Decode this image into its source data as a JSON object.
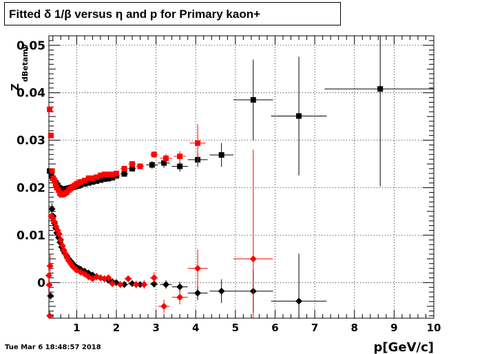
{
  "title": "Fitted δ 1/β versus η and p for Primary kaon+",
  "timestamp": "Tue Mar  6 18:48:57 2018",
  "chart_data": {
    "type": "scatter",
    "title": "Fitted δ 1/β versus η and p for Primary kaon+",
    "xlabel": "p[GeV/c]",
    "ylabel_main": "Z",
    "ylabel_sub": "dBetamv",
    "xlim": [
      0.3,
      10
    ],
    "ylim": [
      -0.0075,
      0.052
    ],
    "grid": true,
    "xticks": [
      "1",
      "2",
      "3",
      "4",
      "5",
      "6",
      "7",
      "8",
      "9",
      "10"
    ],
    "yticks": [
      "0",
      "0.01",
      "0.02",
      "0.03",
      "0.04",
      "0.05"
    ],
    "series": [
      {
        "color": "#000000",
        "marker": "square",
        "points": [
          [
            0.32,
            0.0235
          ],
          [
            0.36,
            0.0225
          ],
          [
            0.4,
            0.022
          ],
          [
            0.44,
            0.0215
          ],
          [
            0.48,
            0.021
          ],
          [
            0.52,
            0.0205
          ],
          [
            0.56,
            0.02
          ],
          [
            0.6,
            0.0198
          ],
          [
            0.65,
            0.0197
          ],
          [
            0.7,
            0.0197
          ],
          [
            0.75,
            0.0198
          ],
          [
            0.8,
            0.0199
          ],
          [
            0.85,
            0.02
          ],
          [
            0.9,
            0.0201
          ],
          [
            0.95,
            0.0202
          ],
          [
            1.0,
            0.0203
          ],
          [
            1.05,
            0.0204
          ],
          [
            1.1,
            0.0206
          ],
          [
            1.2,
            0.0208
          ],
          [
            1.3,
            0.021
          ],
          [
            1.4,
            0.0212
          ],
          [
            1.5,
            0.0214
          ],
          [
            1.6,
            0.0216
          ],
          [
            1.7,
            0.0218
          ],
          [
            1.8,
            0.0219
          ],
          [
            1.9,
            0.0221
          ],
          [
            2.0,
            0.0225
          ],
          [
            2.2,
            0.0229
          ],
          [
            2.4,
            0.024
          ],
          [
            2.6,
            0.0245
          ],
          [
            2.9,
            0.0248
          ],
          [
            3.2,
            0.0252
          ],
          [
            3.6,
            0.0245
          ],
          [
            4.05,
            0.0259
          ],
          [
            4.65,
            0.0269
          ],
          [
            5.45,
            0.0385
          ],
          [
            6.6,
            0.0351
          ],
          [
            8.65,
            0.0408
          ]
        ],
        "xerr": [
          0.02,
          0.02,
          0.02,
          0.02,
          0.02,
          0.02,
          0.02,
          0.02,
          0.025,
          0.025,
          0.025,
          0.025,
          0.025,
          0.025,
          0.025,
          0.025,
          0.025,
          0.05,
          0.05,
          0.05,
          0.05,
          0.05,
          0.05,
          0.05,
          0.05,
          0.05,
          0.1,
          0.1,
          0.1,
          0.1,
          0.15,
          0.15,
          0.2,
          0.25,
          0.3,
          0.5,
          0.7,
          1.4
        ],
        "yerr": [
          0.0004,
          0.0003,
          0.0003,
          0.0003,
          0.0002,
          0.0002,
          0.0002,
          0.0002,
          0.0002,
          0.0002,
          0.0002,
          0.0002,
          0.0002,
          0.0002,
          0.0002,
          0.0002,
          0.0002,
          0.0002,
          0.0002,
          0.0002,
          0.0002,
          0.0002,
          0.0002,
          0.0003,
          0.0003,
          0.0003,
          0.0004,
          0.0005,
          0.0005,
          0.0006,
          0.0008,
          0.001,
          0.0011,
          0.0015,
          0.0025,
          0.0085,
          0.0125,
          0.0205
        ]
      },
      {
        "color": "#ff0000",
        "marker": "square",
        "points": [
          [
            0.32,
            0.0365
          ],
          [
            0.35,
            0.031
          ],
          [
            0.38,
            0.0235
          ],
          [
            0.41,
            0.022
          ],
          [
            0.44,
            0.0215
          ],
          [
            0.47,
            0.0205
          ],
          [
            0.5,
            0.02
          ],
          [
            0.54,
            0.0195
          ],
          [
            0.58,
            0.0188
          ],
          [
            0.62,
            0.0185
          ],
          [
            0.66,
            0.0186
          ],
          [
            0.7,
            0.0188
          ],
          [
            0.75,
            0.019
          ],
          [
            0.8,
            0.0195
          ],
          [
            0.85,
            0.0198
          ],
          [
            0.9,
            0.0202
          ],
          [
            0.95,
            0.0205
          ],
          [
            1.0,
            0.0208
          ],
          [
            1.05,
            0.021
          ],
          [
            1.1,
            0.0212
          ],
          [
            1.2,
            0.0215
          ],
          [
            1.3,
            0.022
          ],
          [
            1.4,
            0.022
          ],
          [
            1.5,
            0.0222
          ],
          [
            1.6,
            0.0226
          ],
          [
            1.7,
            0.0228
          ],
          [
            1.8,
            0.0228
          ],
          [
            1.9,
            0.0228
          ],
          [
            2.0,
            0.023
          ],
          [
            2.2,
            0.024
          ],
          [
            2.4,
            0.025
          ],
          [
            2.6,
            0.0245
          ],
          [
            2.95,
            0.027
          ],
          [
            3.25,
            0.0262
          ],
          [
            3.6,
            0.0266
          ],
          [
            4.05,
            0.0294
          ]
        ],
        "xerr": [
          0.015,
          0.015,
          0.015,
          0.015,
          0.015,
          0.015,
          0.02,
          0.02,
          0.02,
          0.02,
          0.02,
          0.02,
          0.025,
          0.025,
          0.025,
          0.025,
          0.025,
          0.025,
          0.025,
          0.05,
          0.05,
          0.05,
          0.05,
          0.05,
          0.05,
          0.05,
          0.05,
          0.05,
          0.05,
          0.1,
          0.1,
          0.1,
          0.1,
          0.15,
          0.15,
          0.2
        ],
        "yerr": [
          0.0005,
          0.0005,
          0.0004,
          0.0003,
          0.0003,
          0.0003,
          0.0002,
          0.0002,
          0.0002,
          0.0002,
          0.0002,
          0.0002,
          0.0002,
          0.0002,
          0.0002,
          0.0002,
          0.0002,
          0.0002,
          0.0002,
          0.0002,
          0.0002,
          0.0002,
          0.0002,
          0.0003,
          0.0003,
          0.0003,
          0.0003,
          0.0003,
          0.0004,
          0.0005,
          0.0006,
          0.0006,
          0.0007,
          0.0009,
          0.0011,
          0.004
        ]
      },
      {
        "color": "#000000",
        "marker": "diamond",
        "points": [
          [
            0.34,
            -0.0028
          ],
          [
            0.38,
            0.0155
          ],
          [
            0.41,
            0.014
          ],
          [
            0.44,
            0.0125
          ],
          [
            0.47,
            0.0115
          ],
          [
            0.5,
            0.0105
          ],
          [
            0.54,
            0.0095
          ],
          [
            0.58,
            0.0085
          ],
          [
            0.62,
            0.0075
          ],
          [
            0.66,
            0.0068
          ],
          [
            0.7,
            0.0062
          ],
          [
            0.75,
            0.0056
          ],
          [
            0.8,
            0.005
          ],
          [
            0.85,
            0.0045
          ],
          [
            0.9,
            0.004
          ],
          [
            0.95,
            0.0036
          ],
          [
            1.0,
            0.0032
          ],
          [
            1.05,
            0.003
          ],
          [
            1.1,
            0.0028
          ],
          [
            1.2,
            0.0024
          ],
          [
            1.3,
            0.002
          ],
          [
            1.4,
            0.0016
          ],
          [
            1.5,
            0.0013
          ],
          [
            1.6,
            0.001
          ],
          [
            1.7,
            0.0008
          ],
          [
            1.8,
            0.0005
          ],
          [
            1.9,
            0.0002
          ],
          [
            2.0,
            0.0
          ],
          [
            2.2,
            -0.0004
          ],
          [
            2.4,
            -0.0002
          ],
          [
            2.6,
            -0.0004
          ],
          [
            2.95,
            -0.0003
          ],
          [
            3.25,
            -0.0004
          ],
          [
            3.6,
            -0.0009
          ],
          [
            4.05,
            -0.0022
          ],
          [
            4.65,
            -0.0018
          ],
          [
            5.45,
            -0.0018
          ],
          [
            6.6,
            -0.0039
          ]
        ],
        "xerr": [
          0.015,
          0.015,
          0.015,
          0.015,
          0.015,
          0.015,
          0.02,
          0.02,
          0.02,
          0.02,
          0.02,
          0.025,
          0.025,
          0.025,
          0.025,
          0.025,
          0.025,
          0.025,
          0.025,
          0.05,
          0.05,
          0.05,
          0.05,
          0.05,
          0.05,
          0.05,
          0.05,
          0.05,
          0.1,
          0.1,
          0.1,
          0.1,
          0.15,
          0.2,
          0.25,
          0.3,
          0.5,
          0.7
        ],
        "yerr": [
          0.0008,
          0.0012,
          0.0006,
          0.0005,
          0.0004,
          0.0004,
          0.0003,
          0.0003,
          0.0003,
          0.0003,
          0.0003,
          0.0003,
          0.0003,
          0.0003,
          0.0003,
          0.0003,
          0.0003,
          0.0003,
          0.0003,
          0.0003,
          0.0003,
          0.0003,
          0.0003,
          0.0003,
          0.0003,
          0.0003,
          0.0003,
          0.0004,
          0.0004,
          0.0005,
          0.0005,
          0.0007,
          0.0009,
          0.0011,
          0.0015,
          0.0025,
          0.0045,
          0.01
        ]
      },
      {
        "color": "#ff0000",
        "marker": "diamond",
        "points": [
          [
            0.3,
            0.0015
          ],
          [
            0.31,
            -0.0005
          ],
          [
            0.32,
            -0.007
          ],
          [
            0.33,
            0.0035
          ],
          [
            0.36,
            0.014
          ],
          [
            0.4,
            0.0135
          ],
          [
            0.44,
            0.0128
          ],
          [
            0.48,
            0.0118
          ],
          [
            0.52,
            0.011
          ],
          [
            0.56,
            0.0102
          ],
          [
            0.6,
            0.009
          ],
          [
            0.64,
            0.0078
          ],
          [
            0.68,
            0.0068
          ],
          [
            0.72,
            0.006
          ],
          [
            0.76,
            0.0052
          ],
          [
            0.8,
            0.0046
          ],
          [
            0.85,
            0.004
          ],
          [
            0.9,
            0.0034
          ],
          [
            0.95,
            0.003
          ],
          [
            1.0,
            0.0026
          ],
          [
            1.1,
            0.0022
          ],
          [
            1.2,
            0.0018
          ],
          [
            1.3,
            0.0012
          ],
          [
            1.4,
            0.0008
          ],
          [
            1.5,
            0.0012
          ],
          [
            1.6,
            0.001
          ],
          [
            1.7,
            0.0008
          ],
          [
            1.8,
            0.001
          ],
          [
            1.9,
            -0.0002
          ],
          [
            2.1,
            -0.0004
          ],
          [
            2.3,
            0.0008
          ],
          [
            2.5,
            -0.0004
          ],
          [
            2.7,
            -0.0004
          ],
          [
            2.95,
            0.001
          ],
          [
            3.2,
            -0.005
          ],
          [
            3.6,
            -0.0031
          ],
          [
            4.05,
            0.003
          ],
          [
            5.45,
            0.005
          ]
        ],
        "xerr": [
          0.01,
          0.01,
          0.01,
          0.01,
          0.015,
          0.015,
          0.015,
          0.015,
          0.02,
          0.02,
          0.02,
          0.02,
          0.02,
          0.02,
          0.02,
          0.025,
          0.025,
          0.025,
          0.025,
          0.025,
          0.05,
          0.05,
          0.05,
          0.05,
          0.05,
          0.05,
          0.05,
          0.05,
          0.05,
          0.1,
          0.1,
          0.1,
          0.1,
          0.1,
          0.15,
          0.2,
          0.25,
          0.5
        ],
        "yerr": [
          0.001,
          0.002,
          0.001,
          0.0025,
          0.0007,
          0.0005,
          0.0004,
          0.0004,
          0.0004,
          0.0004,
          0.0003,
          0.0003,
          0.0003,
          0.0003,
          0.0003,
          0.0003,
          0.0003,
          0.0003,
          0.0003,
          0.0003,
          0.0003,
          0.0003,
          0.0003,
          0.0004,
          0.0004,
          0.0004,
          0.0005,
          0.0005,
          0.0006,
          0.0006,
          0.0007,
          0.0008,
          0.0009,
          0.0012,
          0.0014,
          0.0015,
          0.004,
          0.023
        ]
      }
    ]
  }
}
